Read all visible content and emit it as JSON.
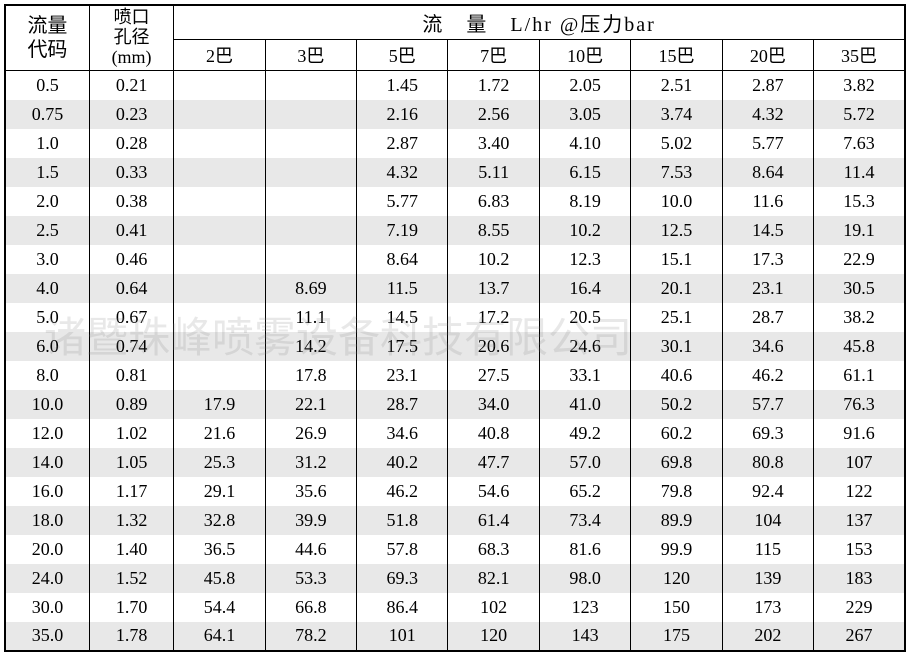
{
  "headers": {
    "code_label_line1": "流量",
    "code_label_line2": "代码",
    "diameter_label_line1": "喷口",
    "diameter_label_line2": "孔径",
    "diameter_label_line3": "(mm)",
    "flow_header": "流　量　L/hr @压力bar",
    "pressure_columns": [
      "2巴",
      "3巴",
      "5巴",
      "7巴",
      "10巴",
      "15巴",
      "20巴",
      "35巴"
    ]
  },
  "rows": [
    {
      "code": "0.5",
      "dia": "0.21",
      "v": [
        "",
        "",
        "1.45",
        "1.72",
        "2.05",
        "2.51",
        "2.87",
        "3.82"
      ]
    },
    {
      "code": "0.75",
      "dia": "0.23",
      "v": [
        "",
        "",
        "2.16",
        "2.56",
        "3.05",
        "3.74",
        "4.32",
        "5.72"
      ]
    },
    {
      "code": "1.0",
      "dia": "0.28",
      "v": [
        "",
        "",
        "2.87",
        "3.40",
        "4.10",
        "5.02",
        "5.77",
        "7.63"
      ]
    },
    {
      "code": "1.5",
      "dia": "0.33",
      "v": [
        "",
        "",
        "4.32",
        "5.11",
        "6.15",
        "7.53",
        "8.64",
        "11.4"
      ]
    },
    {
      "code": "2.0",
      "dia": "0.38",
      "v": [
        "",
        "",
        "5.77",
        "6.83",
        "8.19",
        "10.0",
        "11.6",
        "15.3"
      ]
    },
    {
      "code": "2.5",
      "dia": "0.41",
      "v": [
        "",
        "",
        "7.19",
        "8.55",
        "10.2",
        "12.5",
        "14.5",
        "19.1"
      ]
    },
    {
      "code": "3.0",
      "dia": "0.46",
      "v": [
        "",
        "",
        "8.64",
        "10.2",
        "12.3",
        "15.1",
        "17.3",
        "22.9"
      ]
    },
    {
      "code": "4.0",
      "dia": "0.64",
      "v": [
        "",
        "8.69",
        "11.5",
        "13.7",
        "16.4",
        "20.1",
        "23.1",
        "30.5"
      ]
    },
    {
      "code": "5.0",
      "dia": "0.67",
      "v": [
        "",
        "11.1",
        "14.5",
        "17.2",
        "20.5",
        "25.1",
        "28.7",
        "38.2"
      ]
    },
    {
      "code": "6.0",
      "dia": "0.74",
      "v": [
        "",
        "14.2",
        "17.5",
        "20.6",
        "24.6",
        "30.1",
        "34.6",
        "45.8"
      ]
    },
    {
      "code": "8.0",
      "dia": "0.81",
      "v": [
        "",
        "17.8",
        "23.1",
        "27.5",
        "33.1",
        "40.6",
        "46.2",
        "61.1"
      ]
    },
    {
      "code": "10.0",
      "dia": "0.89",
      "v": [
        "17.9",
        "22.1",
        "28.7",
        "34.0",
        "41.0",
        "50.2",
        "57.7",
        "76.3"
      ]
    },
    {
      "code": "12.0",
      "dia": "1.02",
      "v": [
        "21.6",
        "26.9",
        "34.6",
        "40.8",
        "49.2",
        "60.2",
        "69.3",
        "91.6"
      ]
    },
    {
      "code": "14.0",
      "dia": "1.05",
      "v": [
        "25.3",
        "31.2",
        "40.2",
        "47.7",
        "57.0",
        "69.8",
        "80.8",
        "107"
      ]
    },
    {
      "code": "16.0",
      "dia": "1.17",
      "v": [
        "29.1",
        "35.6",
        "46.2",
        "54.6",
        "65.2",
        "79.8",
        "92.4",
        "122"
      ]
    },
    {
      "code": "18.0",
      "dia": "1.32",
      "v": [
        "32.8",
        "39.9",
        "51.8",
        "61.4",
        "73.4",
        "89.9",
        "104",
        "137"
      ]
    },
    {
      "code": "20.0",
      "dia": "1.40",
      "v": [
        "36.5",
        "44.6",
        "57.8",
        "68.3",
        "81.6",
        "99.9",
        "115",
        "153"
      ]
    },
    {
      "code": "24.0",
      "dia": "1.52",
      "v": [
        "45.8",
        "53.3",
        "69.3",
        "82.1",
        "98.0",
        "120",
        "139",
        "183"
      ]
    },
    {
      "code": "30.0",
      "dia": "1.70",
      "v": [
        "54.4",
        "66.8",
        "86.4",
        "102",
        "123",
        "150",
        "173",
        "229"
      ]
    },
    {
      "code": "35.0",
      "dia": "1.78",
      "v": [
        "64.1",
        "78.2",
        "101",
        "120",
        "143",
        "175",
        "202",
        "267"
      ]
    }
  ],
  "watermark_text": "诸暨珠峰喷雾设备科技有限公司",
  "colors": {
    "border": "#000000",
    "even_row": "#e8e8e8",
    "odd_row": "#ffffff",
    "watermark": "rgba(128,128,128,0.18)"
  },
  "column_widths": {
    "code": 84,
    "diameter": 84,
    "data": 91
  },
  "fonts": {
    "body_family": "SimSun, 宋体, serif",
    "data_family": "Times New Roman, serif",
    "body_size": 18,
    "header_size": 20
  }
}
